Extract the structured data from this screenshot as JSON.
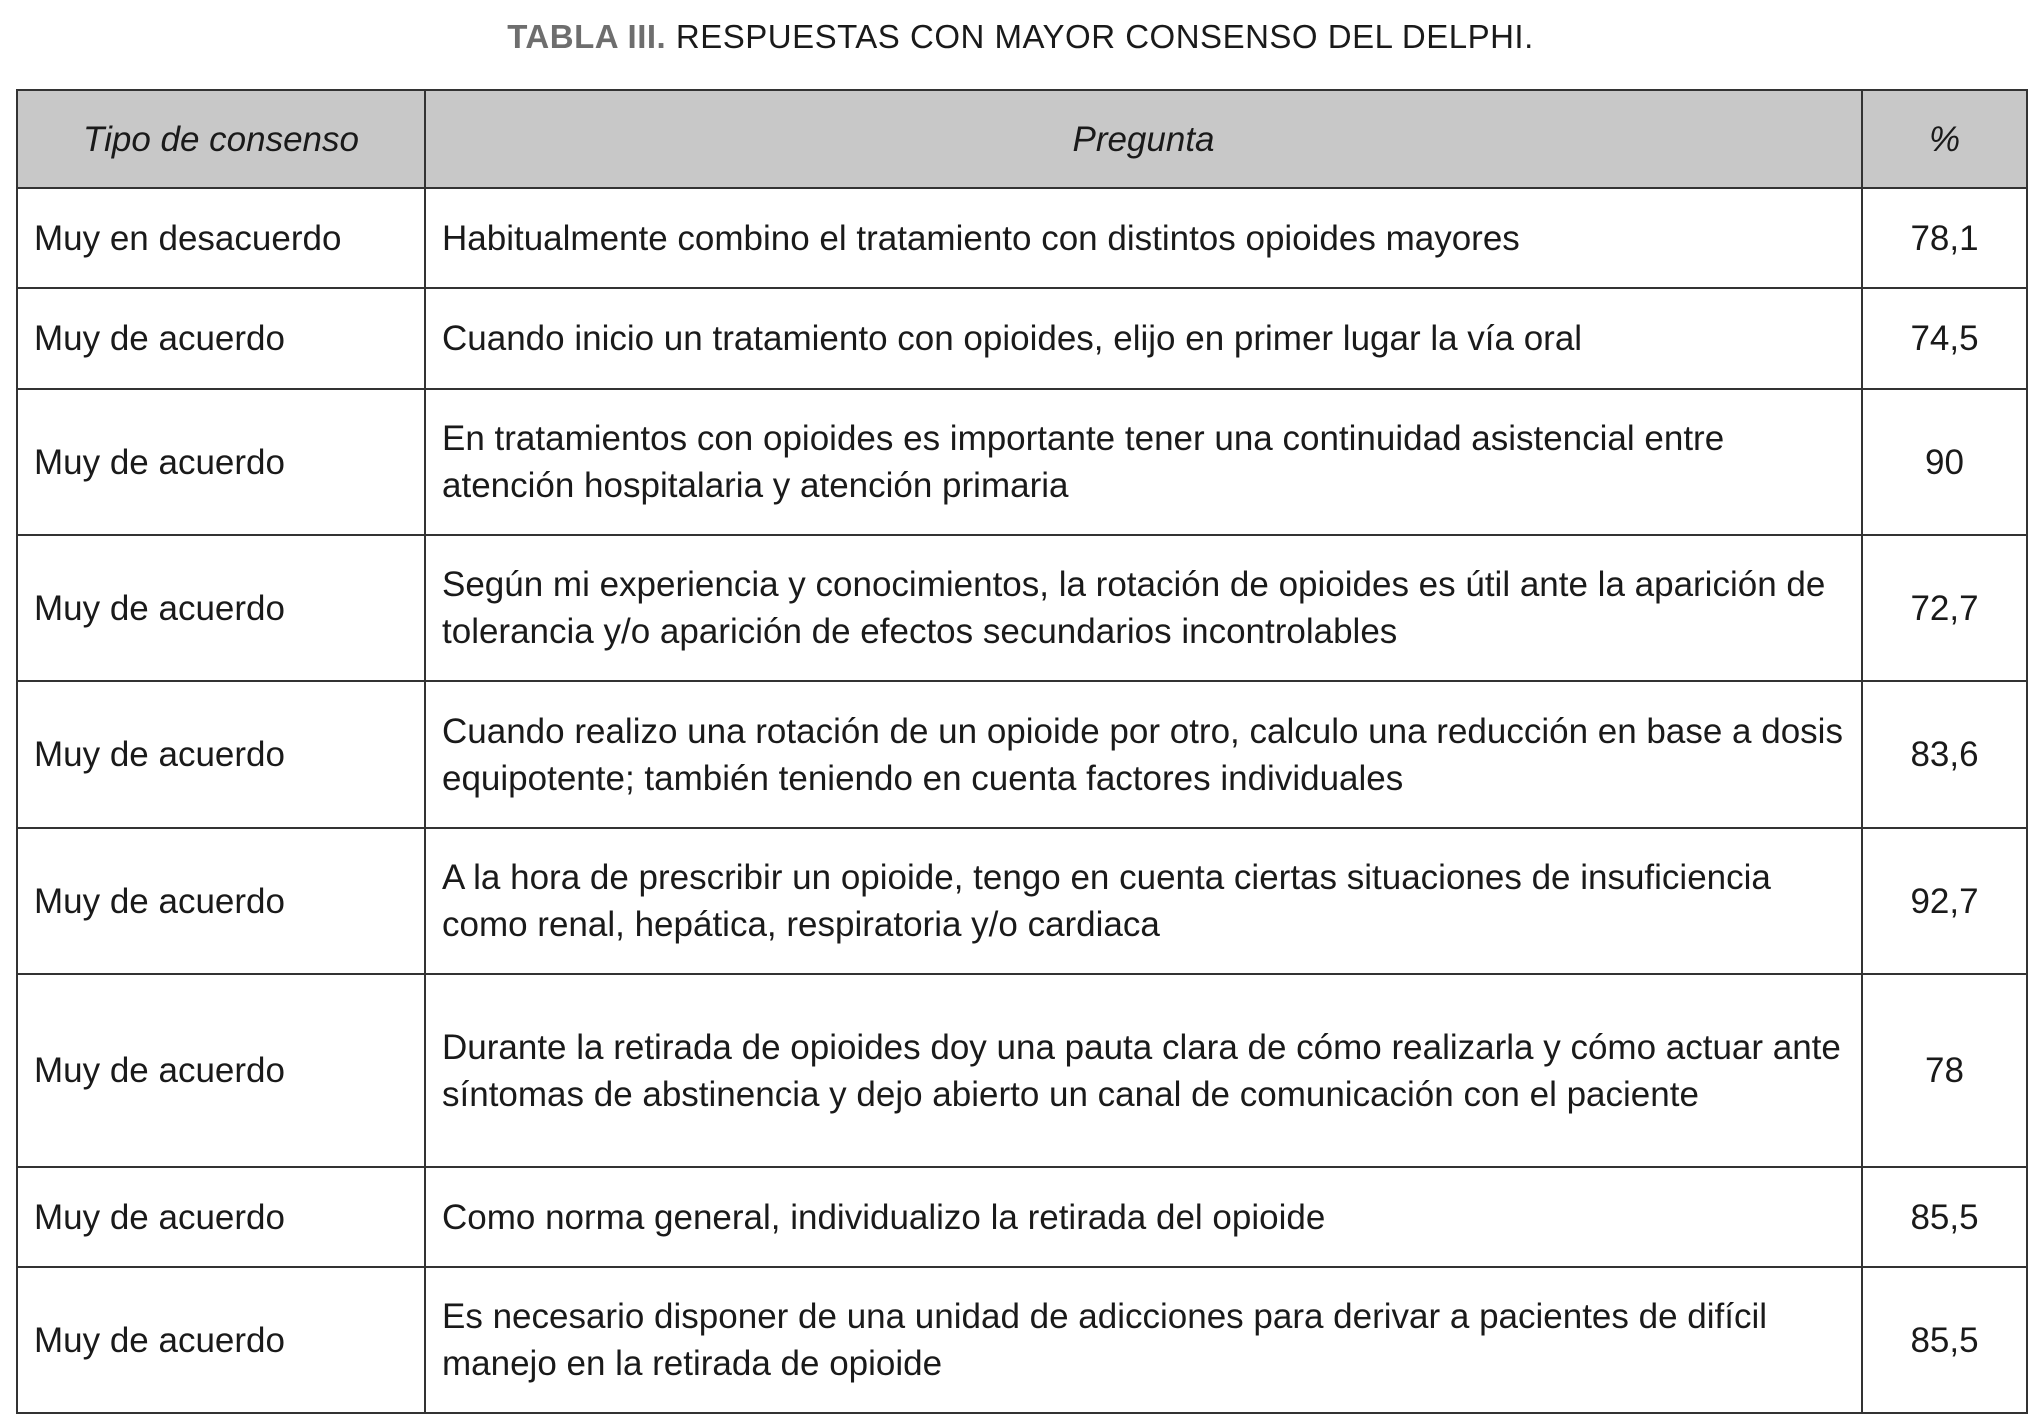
{
  "title": {
    "label": "TABLA III.",
    "text": "RESPUESTAS CON MAYOR CONSENSO DEL DELPHI."
  },
  "headers": [
    "Tipo de consenso",
    "Pregunta",
    "%"
  ],
  "rows": [
    {
      "tipo": "Muy en desacuerdo",
      "pregunta": "Habitualmente combino el tratamiento con distintos opioides mayores",
      "pct": "78,1"
    },
    {
      "tipo": "Muy de acuerdo",
      "pregunta": "Cuando inicio un tratamiento con opioides, elijo en primer lugar la vía oral",
      "pct": "74,5"
    },
    {
      "tipo": "Muy de acuerdo",
      "pregunta": "En tratamientos con opioides es importante tener una continuidad asistencial entre atención hospitalaria y atención primaria",
      "pct": "90"
    },
    {
      "tipo": "Muy de acuerdo",
      "pregunta": "Según mi experiencia y conocimientos, la rotación de opioides es útil ante la aparición de tolerancia y/o aparición de efectos secundarios incontrolables",
      "pct": "72,7"
    },
    {
      "tipo": "Muy de acuerdo",
      "pregunta": "Cuando realizo una rotación de un opioide por otro, calculo una reducción en base a dosis equipotente; también teniendo en cuenta factores individuales",
      "pct": "83,6"
    },
    {
      "tipo": "Muy de acuerdo",
      "pregunta": "A la hora de prescribir un opioide, tengo en cuenta ciertas situaciones de insuficiencia como renal, hepática, respiratoria y/o cardiaca",
      "pct": "92,7"
    },
    {
      "tipo": "Muy de acuerdo",
      "pregunta": "Durante la retirada de opioides doy una pauta clara de cómo realizarla y cómo actuar ante síntomas de abstinencia y dejo abierto un canal de comunicación con el paciente",
      "pct": "78"
    },
    {
      "tipo": "Muy de acuerdo",
      "pregunta": "Como norma general, individualizo la retirada del opioide",
      "pct": "85,5"
    },
    {
      "tipo": "Muy de acuerdo",
      "pregunta": "Es necesario disponer de una unidad de adicciones para derivar a pacientes de difícil manejo en la retirada de opioide",
      "pct": "85,5"
    }
  ]
}
